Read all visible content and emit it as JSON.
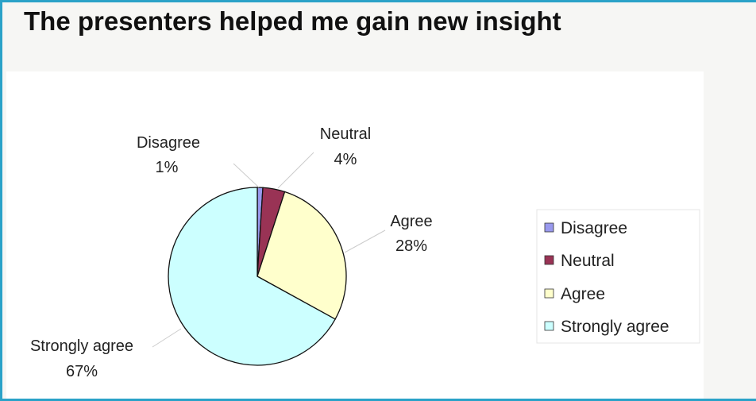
{
  "title": "The presenters helped me gain new insight",
  "colors": {
    "frame": "#2aa2c8",
    "plot_background": "#ffffff",
    "Disagree": "#9999ee",
    "Neutral": "#993355",
    "Agree": "#ffffcc",
    "Strongly agree": "#ccffff"
  },
  "chart_data": {
    "type": "pie",
    "title": "The presenters helped me gain new insight",
    "categories": [
      "Disagree",
      "Neutral",
      "Agree",
      "Strongly agree"
    ],
    "values": [
      1,
      4,
      28,
      67
    ],
    "data_labels": [
      "Disagree 1%",
      "Neutral 4%",
      "Agree 28%",
      "Strongly agree 67%"
    ],
    "legend": [
      "Disagree",
      "Neutral",
      "Agree",
      "Strongly agree"
    ],
    "legend_position": "right",
    "unit": "%"
  },
  "labels": {
    "disagree_name": "Disagree",
    "disagree_pct": "1%",
    "neutral_name": "Neutral",
    "neutral_pct": "4%",
    "agree_name": "Agree",
    "agree_pct": "28%",
    "strongly_name": "Strongly agree",
    "strongly_pct": "67%"
  },
  "legend_items": [
    "Disagree",
    "Neutral",
    "Agree",
    "Strongly agree"
  ]
}
